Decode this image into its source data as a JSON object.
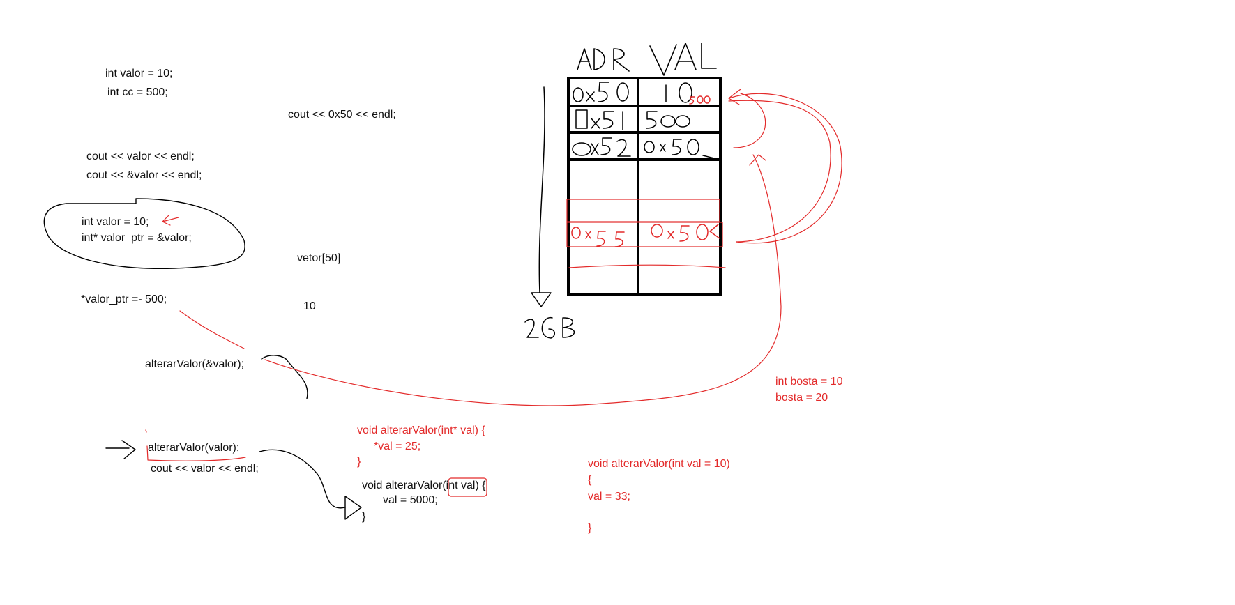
{
  "code_black": {
    "decl_valor": "int valor = 10;",
    "decl_cc": "int cc = 500;",
    "cout_hex": "cout << 0x50 << endl;",
    "cout_valor": "cout << valor << endl;",
    "cout_addr": "cout << &valor << endl;",
    "ptr_decl_valor": "int valor = 10;",
    "ptr_decl_ptr": "int* valor_ptr = &valor;",
    "vetor": "vetor[50]",
    "deref_assign": "*valor_ptr =- 500;",
    "ten": "10",
    "call_by_ref": "alterarValor(&valor);",
    "call_by_val": "alterarValor(valor);",
    "cout_after": "cout << valor << endl;",
    "fn_val_sig": "void alterarValor(int val) {",
    "fn_val_body": "val = 5000;",
    "fn_val_close": "}"
  },
  "code_red": {
    "fn_ptr_sig": "void alterarValor(int* val) {",
    "fn_ptr_body": "*val = 25;",
    "fn_ptr_close": "}",
    "bosta_decl": "int bosta = 10",
    "bosta_assign": "bosta = 20",
    "fn_default_sig": "void alterarValor(int val = 10)",
    "fn_default_open": "{",
    "fn_default_body": "val = 33;",
    "fn_default_close": "}"
  },
  "memory_sketch": {
    "header_addr": "ADR",
    "header_val": "VAL",
    "rows": [
      {
        "addr": "0x50",
        "val": "10",
        "overwrite": "500"
      },
      {
        "addr": "0x51",
        "val": "500"
      },
      {
        "addr": "0x52",
        "val": "0x50"
      }
    ],
    "ptr_row": {
      "addr": "0x55",
      "val": "0x50"
    },
    "size_label": "2GB"
  },
  "colors": {
    "ink": "#111111",
    "red": "#e32a2a"
  }
}
